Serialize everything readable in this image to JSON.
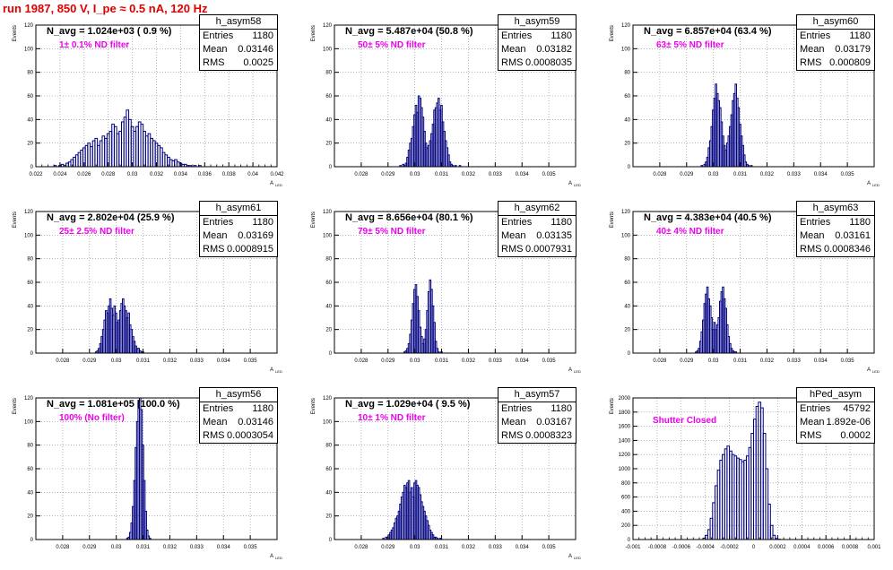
{
  "run_title": "run 1987,   850 V, I_pe ≈ 0.5 nA, 120 Hz",
  "colors": {
    "hist": "#000080",
    "annotation": "#ee00ee",
    "title": "#e00000",
    "grid": "#888888"
  },
  "stats_labels": {
    "entries": "Entries",
    "mean": "Mean",
    "rms": "RMS"
  },
  "chart_data": [
    {
      "type": "bar",
      "name": "h_asym58",
      "title": "N_avg = 1.024e+03 ( 0.9 %)",
      "annotation": "1± 0.1% ND filter",
      "entries": "1180",
      "mean": "0.03146",
      "rms": "0.0025",
      "xlabel": "A",
      "xlabel_sub": "LED",
      "ylabel": "Events",
      "xlim": [
        0.022,
        0.042
      ],
      "ylim": [
        0,
        120
      ],
      "grid": true,
      "xticks": [
        "0.022",
        "0.024",
        "0.026",
        "0.028",
        "0.03",
        "0.032",
        "0.034",
        "0.036",
        "0.038",
        "0.04",
        "0.042"
      ],
      "yticks": [
        "0",
        "20",
        "40",
        "60",
        "80",
        "100",
        "120"
      ],
      "xticks_minor": true,
      "bin_start": 0.0235,
      "bin_width": 0.0002,
      "values": [
        1,
        0,
        1,
        2,
        1,
        3,
        4,
        6,
        8,
        10,
        12,
        14,
        16,
        18,
        20,
        17,
        22,
        24,
        18,
        22,
        26,
        24,
        28,
        30,
        36,
        34,
        28,
        30,
        38,
        42,
        48,
        40,
        34,
        30,
        34,
        38,
        36,
        30,
        26,
        28,
        24,
        22,
        20,
        18,
        16,
        12,
        10,
        8,
        6,
        5,
        6,
        4,
        3,
        2,
        2,
        1,
        1,
        0,
        1,
        0,
        1
      ]
    },
    {
      "type": "bar",
      "name": "h_asym59",
      "title": "N_avg = 5.487e+04 (50.8 %)",
      "annotation": "50± 5% ND filter",
      "entries": "1180",
      "mean": "0.03182",
      "rms": "0.0008035",
      "xlabel": "A",
      "xlabel_sub": "LED",
      "ylabel": "Events",
      "xlim": [
        0.0275,
        0.036
      ],
      "ylim": [
        0,
        120
      ],
      "grid": true,
      "xticks": [
        "",
        "0.028",
        "0.029",
        "0.03",
        "0.031",
        "0.032",
        "0.033",
        "0.034",
        "0.035",
        ""
      ],
      "yticks": [
        "0",
        "20",
        "40",
        "60",
        "80",
        "100",
        "120"
      ],
      "xticks_minor": false,
      "bin_start": 0.0298,
      "bin_width": 5e-05,
      "values": [
        1,
        0,
        2,
        1,
        3,
        8,
        14,
        20,
        24,
        34,
        44,
        52,
        46,
        60,
        58,
        50,
        42,
        30,
        20,
        16,
        18,
        22,
        28,
        36,
        48,
        50,
        54,
        58,
        48,
        52,
        38,
        30,
        22,
        16,
        10,
        4,
        2,
        1,
        0,
        1,
        0,
        0,
        1
      ]
    },
    {
      "type": "bar",
      "name": "h_asym60",
      "title": "N_avg = 6.857e+04 (63.4 %)",
      "annotation": "63± 5% ND filter",
      "entries": "1180",
      "mean": "0.03179",
      "rms": "0.000809",
      "xlabel": "A",
      "xlabel_sub": "LED",
      "ylabel": "Events",
      "xlim": [
        0.0275,
        0.036
      ],
      "ylim": [
        0,
        120
      ],
      "grid": true,
      "xticks": [
        "",
        "0.028",
        "0.029",
        "0.03",
        "0.031",
        "0.032",
        "0.033",
        "0.034",
        "0.035",
        ""
      ],
      "yticks": [
        "0",
        "20",
        "40",
        "60",
        "80",
        "100",
        "120"
      ],
      "xticks_minor": false,
      "bin_start": 0.0299,
      "bin_width": 5e-05,
      "values": [
        1,
        0,
        2,
        4,
        8,
        16,
        22,
        34,
        48,
        58,
        70,
        62,
        56,
        50,
        38,
        26,
        18,
        14,
        20,
        26,
        34,
        44,
        56,
        62,
        70,
        58,
        50,
        36,
        26,
        18,
        10,
        4,
        2,
        1,
        0,
        1
      ]
    },
    {
      "type": "bar",
      "name": "h_asym61",
      "title": "N_avg = 2.802e+04 (25.9 %)",
      "annotation": "25± 2.5% ND filter",
      "entries": "1180",
      "mean": "0.03169",
      "rms": "0.0008915",
      "xlabel": "A",
      "xlabel_sub": "LED",
      "ylabel": "Events",
      "xlim": [
        0.0275,
        0.036
      ],
      "ylim": [
        0,
        120
      ],
      "grid": true,
      "xticks": [
        "",
        "0.028",
        "0.029",
        "0.03",
        "0.031",
        "0.032",
        "0.033",
        "0.034",
        "0.035",
        ""
      ],
      "yticks": [
        "0",
        "20",
        "40",
        "60",
        "80",
        "100",
        "120"
      ],
      "xticks_minor": false,
      "bin_start": 0.0296,
      "bin_width": 5e-05,
      "values": [
        1,
        2,
        4,
        8,
        14,
        20,
        28,
        36,
        34,
        40,
        46,
        38,
        32,
        40,
        34,
        26,
        28,
        36,
        42,
        46,
        40,
        36,
        30,
        34,
        24,
        20,
        14,
        10,
        6,
        4,
        4,
        2,
        1,
        1
      ]
    },
    {
      "type": "bar",
      "name": "h_asym62",
      "title": "N_avg = 8.656e+04 (80.1 %)",
      "annotation": "79± 5% ND filter",
      "entries": "1180",
      "mean": "0.03135",
      "rms": "0.0007931",
      "xlabel": "A",
      "xlabel_sub": "LED",
      "ylabel": "Events",
      "xlim": [
        0.0275,
        0.036
      ],
      "ylim": [
        0,
        120
      ],
      "grid": true,
      "xticks": [
        "",
        "0.028",
        "0.029",
        "0.03",
        "0.031",
        "0.032",
        "0.033",
        "0.034",
        "0.035",
        ""
      ],
      "yticks": [
        "0",
        "20",
        "40",
        "60",
        "80",
        "100",
        "120"
      ],
      "xticks_minor": false,
      "bin_start": 0.02995,
      "bin_width": 5e-05,
      "values": [
        1,
        2,
        4,
        8,
        16,
        28,
        42,
        54,
        58,
        48,
        36,
        22,
        14,
        8,
        12,
        20,
        36,
        52,
        62,
        54,
        40,
        26,
        10,
        4,
        1,
        0,
        1
      ]
    },
    {
      "type": "bar",
      "name": "h_asym63",
      "title": "N_avg = 4.383e+04 (40.5 %)",
      "annotation": "40± 4% ND filter",
      "entries": "1180",
      "mean": "0.03161",
      "rms": "0.0008346",
      "xlabel": "A",
      "xlabel_sub": "LED",
      "ylabel": "Events",
      "xlim": [
        0.0275,
        0.036
      ],
      "ylim": [
        0,
        120
      ],
      "grid": true,
      "xticks": [
        "",
        "0.028",
        "0.029",
        "0.03",
        "0.031",
        "0.032",
        "0.033",
        "0.034",
        "0.035",
        ""
      ],
      "yticks": [
        "0",
        "20",
        "40",
        "60",
        "80",
        "100",
        "120"
      ],
      "xticks_minor": false,
      "bin_start": 0.0297,
      "bin_width": 5e-05,
      "values": [
        1,
        2,
        4,
        10,
        18,
        28,
        42,
        50,
        56,
        46,
        40,
        30,
        20,
        26,
        20,
        24,
        30,
        44,
        52,
        56,
        46,
        38,
        24,
        14,
        8,
        4,
        2,
        1,
        1
      ]
    },
    {
      "type": "bar",
      "name": "h_asym56",
      "title": "N_avg = 1.081e+05 (100.0 %)",
      "annotation": "100% (No filter)",
      "entries": "1180",
      "mean": "0.03146",
      "rms": "0.0003054",
      "xlabel": "A",
      "xlabel_sub": "LED",
      "ylabel": "Events",
      "xlim": [
        0.0275,
        0.036
      ],
      "ylim": [
        0,
        120
      ],
      "grid": true,
      "xticks": [
        "",
        "0.028",
        "0.029",
        "0.03",
        "0.031",
        "0.032",
        "0.033",
        "0.034",
        "0.035",
        ""
      ],
      "yticks": [
        "0",
        "20",
        "40",
        "60",
        "80",
        "100",
        "120"
      ],
      "xticks_minor": false,
      "bin_start": 0.0307,
      "bin_width": 5e-05,
      "values": [
        1,
        2,
        6,
        14,
        28,
        50,
        78,
        100,
        118,
        120,
        110,
        80,
        50,
        24,
        8,
        3,
        1
      ]
    },
    {
      "type": "bar",
      "name": "h_asym57",
      "title": "N_avg = 1.029e+04 ( 9.5 %)",
      "annotation": "10± 1% ND filter",
      "entries": "1180",
      "mean": "0.03167",
      "rms": "0.0008323",
      "xlabel": "A",
      "xlabel_sub": "LED",
      "ylabel": "Events",
      "xlim": [
        0.0275,
        0.036
      ],
      "ylim": [
        0,
        120
      ],
      "grid": true,
      "xticks": [
        "",
        "0.028",
        "0.029",
        "0.03",
        "0.031",
        "0.032",
        "0.033",
        "0.034",
        "0.035",
        ""
      ],
      "yticks": [
        "0",
        "20",
        "40",
        "60",
        "80",
        "100",
        "120"
      ],
      "xticks_minor": false,
      "bin_start": 0.0292,
      "bin_width": 5e-05,
      "values": [
        1,
        0,
        2,
        2,
        4,
        6,
        8,
        10,
        14,
        18,
        20,
        24,
        30,
        36,
        40,
        46,
        44,
        48,
        50,
        40,
        44,
        36,
        48,
        50,
        46,
        44,
        38,
        32,
        28,
        24,
        20,
        16,
        12,
        8,
        6,
        4,
        2,
        2,
        1,
        0,
        1
      ]
    },
    {
      "type": "bar",
      "name": "hPed_asym",
      "title": "",
      "annotation": "Shutter Closed",
      "entries": "45792",
      "mean": "1.892e-06",
      "rms": "0.0002",
      "xlabel": "",
      "xlabel_sub": "",
      "ylabel": "Events",
      "xlim": [
        -0.001,
        0.001
      ],
      "ylim": [
        0,
        2000
      ],
      "grid": true,
      "xticks": [
        "-0.001",
        "-0.0008",
        "-0.0006",
        "-0.0004",
        "-0.0002",
        "0",
        "0.0002",
        "0.0004",
        "0.0006",
        "0.0008",
        "0.001"
      ],
      "yticks": [
        "0",
        "200",
        "400",
        "600",
        "800",
        "1000",
        "1200",
        "1400",
        "1600",
        "1800",
        "2000"
      ],
      "xticks_minor": true,
      "bin_start": -0.00042,
      "bin_width": 2e-05,
      "values": [
        20,
        60,
        140,
        300,
        520,
        760,
        980,
        1120,
        1200,
        1280,
        1320,
        1250,
        1200,
        1180,
        1150,
        1130,
        1100,
        1120,
        1180,
        1300,
        1500,
        1700,
        1880,
        1940,
        1860,
        1500,
        1000,
        500,
        200,
        60,
        15,
        5
      ]
    }
  ]
}
